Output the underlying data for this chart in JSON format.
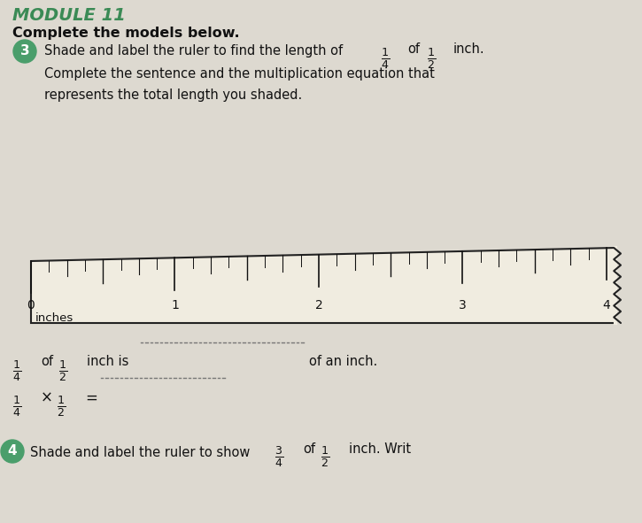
{
  "header_module": "MODULE 11",
  "title_bold": "Complete the models below.",
  "circle_number": "3",
  "circle_color": "#4a9e6b",
  "instruction_part1": "Shade and label the ruler to find the length of ",
  "instruction_part2": "of ",
  "instruction_part3": "inch.",
  "instruction_line2": "Complete the sentence and the multiplication equation that",
  "instruction_line3": "represents the total length you shaded.",
  "number_labels": [
    0,
    1,
    2,
    3,
    4
  ],
  "inches_label": "inches",
  "bg_color": "#ddd9d0",
  "ruler_bg": "#f0ece0",
  "text_color": "#111111",
  "green_color": "#3a8a55",
  "dot_color": "#777777",
  "next_circle_number": "4",
  "next_circle_color": "#4a9e6b"
}
